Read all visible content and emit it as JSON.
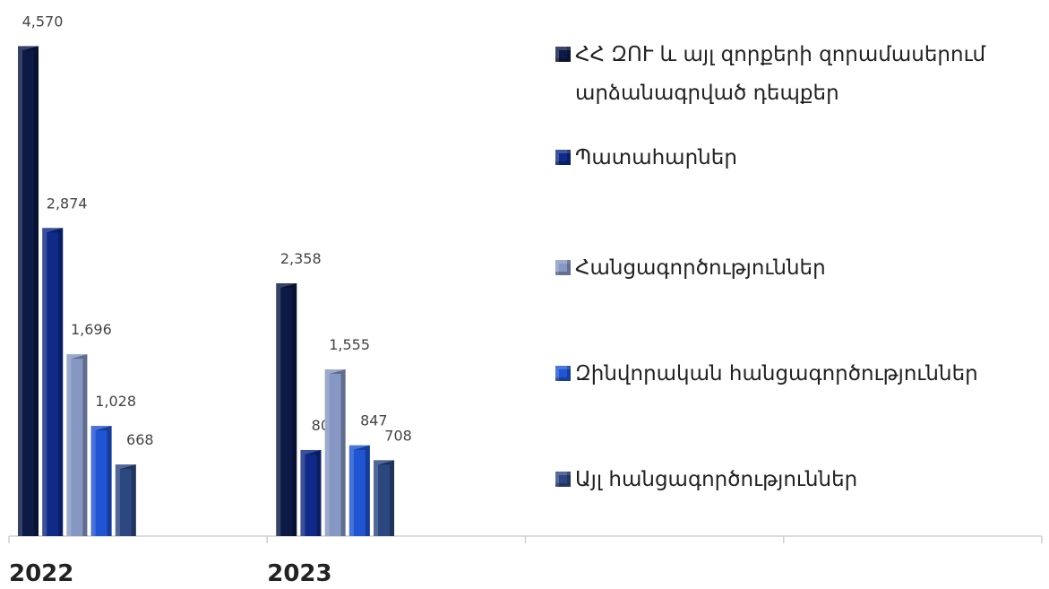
{
  "chart_data": {
    "type": "bar",
    "categories": [
      "2022",
      "2023",
      null,
      null
    ],
    "ylim": [
      0,
      5000
    ],
    "series": [
      {
        "name": "ՀՀ ԶՈՒ և այլ զորքերի զորամասերում արձանագրված դեպքեր",
        "color": "#0c1a45",
        "values": [
          4570,
          2358,
          null,
          null
        ],
        "value_labels": [
          "4,570",
          "2,358",
          null,
          null
        ]
      },
      {
        "name": "Պատահարներ",
        "color": "#0f2a88",
        "values": [
          2874,
          803,
          null,
          null
        ],
        "value_labels": [
          "2,874",
          "803",
          null,
          null
        ]
      },
      {
        "name": "Հանցագործություններ",
        "color": "#8597c2",
        "values": [
          1696,
          1555,
          null,
          null
        ],
        "value_labels": [
          "1,696",
          "1,555",
          null,
          null
        ]
      },
      {
        "name": "Զինվորական հանցագործություններ",
        "color": "#1f54d2",
        "values": [
          1028,
          847,
          null,
          null
        ],
        "value_labels": [
          "1,028",
          "847",
          null,
          null
        ]
      },
      {
        "name": "Այլ հանցագործություններ",
        "color": "#2c4780",
        "values": [
          668,
          708,
          null,
          null
        ],
        "value_labels": [
          "668",
          "708",
          null,
          null
        ]
      }
    ]
  }
}
